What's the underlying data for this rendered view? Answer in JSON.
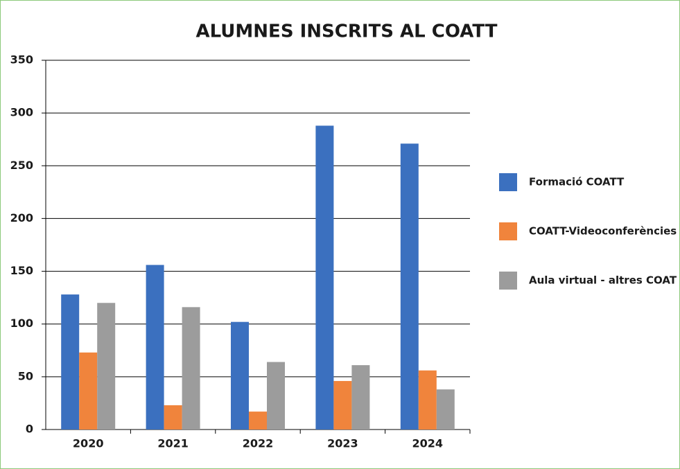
{
  "chart_data": {
    "type": "bar",
    "title": "ALUMNES INSCRITS AL COATT",
    "categories": [
      "2020",
      "2021",
      "2022",
      "2023",
      "2024"
    ],
    "series": [
      {
        "name": "Formació COATT",
        "color": "#3b70bf",
        "values": [
          128,
          156,
          102,
          288,
          271
        ]
      },
      {
        "name": "COATT-Videoconferències",
        "color": "#f0843c",
        "values": [
          73,
          23,
          17,
          46,
          56
        ]
      },
      {
        "name": "Aula virtual - altres COAT",
        "color": "#9c9c9c",
        "values": [
          120,
          116,
          64,
          61,
          38
        ]
      }
    ],
    "ylim": [
      0,
      350
    ],
    "yticks": [
      0,
      50,
      100,
      150,
      200,
      250,
      300,
      350
    ],
    "grid": true,
    "legend": "right"
  }
}
